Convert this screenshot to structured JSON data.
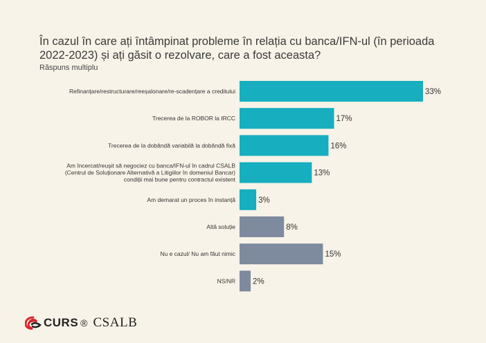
{
  "title": "În cazul în care ați întâmpinat probleme în relația cu banca/IFN-ul (în perioada 2022-2023) și ați găsit o rezolvare, care a fost aceasta?",
  "subtitle": "Răspuns multiplu",
  "colors": {
    "primary": "#17aebf",
    "other": "#7e8a9e",
    "background": "#f8f3e8"
  },
  "chart_data": {
    "type": "bar",
    "orientation": "horizontal",
    "categories": [
      [
        "Refinanțare/restructurare/reeșalonare/re-scadențare a creditului"
      ],
      [
        "Trecerea de la ROBOR la IRCC"
      ],
      [
        "Trecerea de la dobândă variabilă la dobândă fixă"
      ],
      [
        "Am încercat/reușit să negociez cu banca/IFN-ul în cadrul CSALB",
        "(Centrul de Soluționare Alternativă a Litigiilor în domeniul Bancar)",
        "condiții mai bune pentru contractul existent"
      ],
      [
        "Am demarat un proces în instanță"
      ],
      [
        "Altă soluție"
      ],
      [
        "Nu e cazul/ Nu am făut nimic"
      ],
      [
        "NS/NR"
      ]
    ],
    "values": [
      33,
      17,
      16,
      13,
      3,
      8,
      15,
      2
    ],
    "value_labels": [
      "33%",
      "17%",
      "16%",
      "13%",
      "3%",
      "8%",
      "15%",
      "2%"
    ],
    "bar_colors": [
      "primary",
      "primary",
      "primary",
      "primary",
      "primary",
      "other",
      "other",
      "other"
    ],
    "xlim": [
      0,
      33
    ]
  },
  "footer": {
    "curs_logo_text": "CURS",
    "registered_mark": "®",
    "csalb_logo_text": "CSALB",
    "curs_icon": "curs-swirl-icon"
  }
}
